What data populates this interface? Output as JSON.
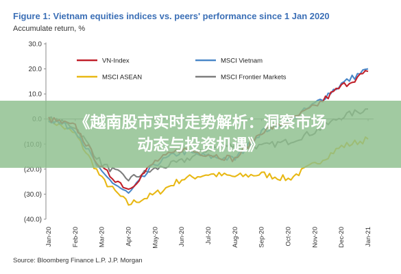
{
  "figure": {
    "title": "Figure 1: Vietnam equities indices vs. peers' performance since 1 Jan 2020",
    "source": "Source: Bloomberg Finance L.P. J.P. Morgan"
  },
  "banner": {
    "line1": "《越南股市实时走势解析：洞察市场",
    "line2": "动态与投资机遇》"
  },
  "chart_data": {
    "type": "line",
    "ylabel": "Accumulate return, %",
    "ylim": [
      -40,
      30
    ],
    "yticks": [
      {
        "value": 30,
        "label": "30.0"
      },
      {
        "value": 20,
        "label": "20.0"
      },
      {
        "value": 10,
        "label": "10.0"
      },
      {
        "value": 0,
        "label": "0.0"
      },
      {
        "value": -10,
        "label": "(10.0)"
      },
      {
        "value": -20,
        "label": "(20.0)"
      },
      {
        "value": -30,
        "label": "(30.0)"
      },
      {
        "value": -40,
        "label": "(40.0)"
      }
    ],
    "x": [
      "Jan-20",
      "Feb-20",
      "Mar-20",
      "Apr-20",
      "May-20",
      "Jun-20",
      "Jul-20",
      "Aug-20",
      "Sep-20",
      "Oct-20",
      "Nov-20",
      "Dec-20",
      "Jan-21"
    ],
    "grid": false,
    "legend_position": "top-left",
    "series": [
      {
        "name": "VN-Index",
        "color": "#c0202a",
        "values": [
          0,
          -3,
          -20,
          -28,
          -17,
          -12,
          -14,
          -16,
          -5,
          -1,
          5,
          13,
          19
        ]
      },
      {
        "name": "MSCI Vietnam",
        "color": "#4a87c8",
        "values": [
          0,
          -4,
          -22,
          -30,
          -18,
          -13,
          -15,
          -16,
          -5,
          -1,
          6,
          14,
          20
        ]
      },
      {
        "name": "MSCI ASEAN",
        "color": "#e8b814",
        "values": [
          0,
          -6,
          -24,
          -34,
          -30,
          -24,
          -22,
          -23,
          -22,
          -24,
          -18,
          -11,
          -8
        ]
      },
      {
        "name": "MSCI Frontier Markets",
        "color": "#7d7d7d",
        "values": [
          0,
          -3,
          -18,
          -24,
          -20,
          -17,
          -12,
          -10,
          -11,
          -9,
          -5,
          1,
          4
        ]
      }
    ]
  }
}
